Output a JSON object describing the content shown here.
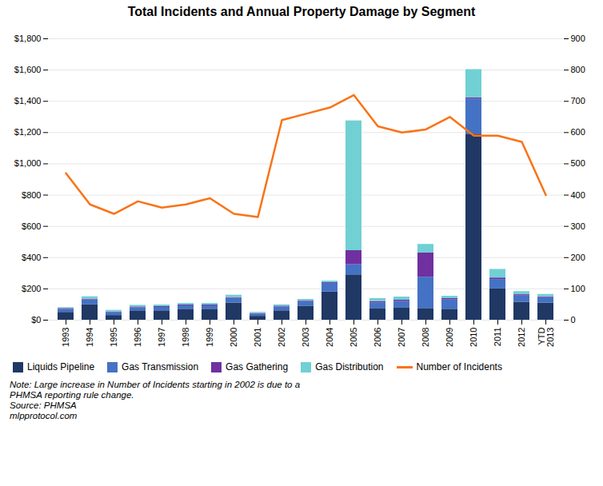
{
  "chart_data": {
    "type": "bar",
    "title": "Total Incidents and Annual Property Damage by Segment",
    "stacked": true,
    "categories": [
      "1993",
      "1994",
      "1995",
      "1996",
      "1997",
      "1998",
      "1999",
      "2000",
      "2001",
      "2002",
      "2003",
      "2004",
      "2005",
      "2006",
      "2007",
      "2008",
      "2009",
      "2010",
      "2011",
      "2012",
      "YTD\n2013"
    ],
    "series": [
      {
        "name": "Liquids Pipeline",
        "color": "#1f3864",
        "values": [
          50,
          100,
          30,
          60,
          60,
          70,
          70,
          110,
          25,
          60,
          90,
          180,
          290,
          75,
          80,
          75,
          70,
          1190,
          200,
          115,
          110
        ]
      },
      {
        "name": "Gas Transmission",
        "color": "#4472c4",
        "values": [
          20,
          30,
          18,
          20,
          22,
          22,
          22,
          30,
          12,
          25,
          30,
          55,
          65,
          35,
          40,
          200,
          60,
          225,
          60,
          40,
          35
        ]
      },
      {
        "name": "Gas Gathering",
        "color": "#7030a0",
        "values": [
          5,
          5,
          5,
          5,
          5,
          5,
          5,
          5,
          5,
          5,
          5,
          5,
          90,
          8,
          8,
          155,
          8,
          8,
          10,
          8,
          5
        ]
      },
      {
        "name": "Gas Distribution",
        "color": "#70d0d4",
        "values": [
          5,
          15,
          10,
          10,
          10,
          10,
          10,
          15,
          8,
          8,
          8,
          10,
          830,
          20,
          20,
          55,
          15,
          180,
          55,
          20,
          15
        ]
      },
      {
        "name": "Number of Incidents",
        "color": "#f97316",
        "type": "line",
        "axis": "y2",
        "values": [
          470,
          370,
          340,
          380,
          360,
          370,
          390,
          340,
          330,
          640,
          660,
          680,
          720,
          620,
          600,
          610,
          650,
          590,
          590,
          570,
          400
        ]
      }
    ],
    "ylim": [
      0,
      1800
    ],
    "yticks": [
      {
        "value": 0,
        "label": "$0"
      },
      {
        "value": 200,
        "label": "$200"
      },
      {
        "value": 400,
        "label": "$400"
      },
      {
        "value": 600,
        "label": "$600"
      },
      {
        "value": 800,
        "label": "$800"
      },
      {
        "value": 1000,
        "label": "$1,000"
      },
      {
        "value": 1200,
        "label": "$1,200"
      },
      {
        "value": 1400,
        "label": "$1,400"
      },
      {
        "value": 1600,
        "label": "$1,600"
      },
      {
        "value": 1800,
        "label": "$1,800"
      }
    ],
    "y2lim": [
      0,
      900
    ],
    "y2ticks": [
      0,
      100,
      200,
      300,
      400,
      500,
      600,
      700,
      800,
      900
    ],
    "grid": true,
    "legend": "bottom",
    "annotations": [
      "Note: Large increase in Number of Incidents starting in 2002 is due to a",
      "PHMSA reporting rule change.",
      "Source: PHMSA",
      "mlpprotocol.com"
    ]
  }
}
